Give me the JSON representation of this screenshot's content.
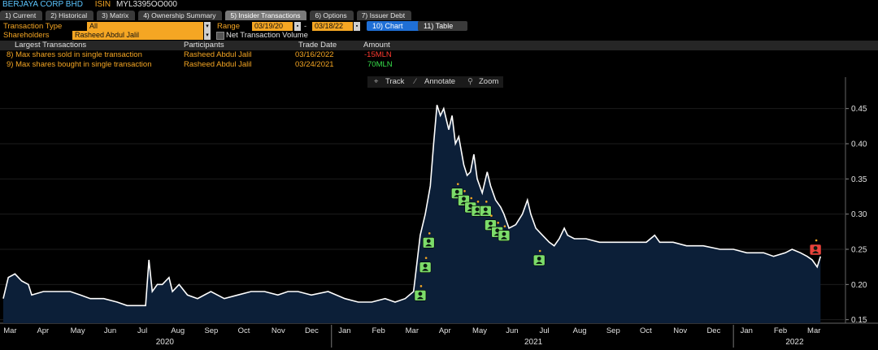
{
  "header": {
    "company": "BERJAYA CORP BHD",
    "isin_label": "ISIN",
    "isin_value": "MYL3395OO000"
  },
  "tabs": [
    "1) Current",
    "2) Historical",
    "3) Matrix",
    "4) Ownership Summary",
    "5) Insider Transactions",
    "6) Options",
    "7) Issuer Debt"
  ],
  "active_tab": 4,
  "form": {
    "transaction_type_label": "Transaction Type",
    "transaction_type_value": "All",
    "shareholders_label": "Shareholders",
    "shareholders_value": "Rasheed Abdul Jalil",
    "range_label": "Range",
    "range_start": "03/19/20",
    "range_sep": "-",
    "range_end": "03/18/22",
    "chart_button": "10) Chart",
    "table_button": "11) Table",
    "net_volume_label": "Net Transaction Volume"
  },
  "summary_table": {
    "headers": [
      "Largest Transactions",
      "Participants",
      "Trade Date",
      "Amount"
    ],
    "rows": [
      {
        "label": "8) Max shares sold in single transaction",
        "participant": "Rasheed Abdul Jalil",
        "date": "03/16/2022",
        "amount": "-15MLN"
      },
      {
        "label": "9) Max shares bought in single transaction",
        "participant": "Rasheed Abdul Jalil",
        "date": "03/24/2021",
        "amount": "70MLN"
      }
    ]
  },
  "toolbar": {
    "track": "Track",
    "annotate": "Annotate",
    "zoom": "Zoom"
  },
  "colors": {
    "accent": "#f5a623",
    "line": "#ffffff",
    "area": "#0c1f38",
    "buy": "#7cdc6a",
    "sell": "#e8423a",
    "negative": "#ff3b30",
    "positive": "#37e04a",
    "link": "#5cc6ff"
  },
  "chart_data": {
    "type": "area",
    "title": "",
    "ylim": [
      0.145,
      0.475
    ],
    "xlim": [
      0,
      25
    ],
    "yticks": [
      0.45,
      0.4,
      0.35,
      0.3,
      0.25,
      0.2,
      0.15
    ],
    "ytick_labels": [
      "0.45",
      "0.40",
      "0.35",
      "0.30",
      "0.25",
      "0.20",
      "0.15"
    ],
    "months": [
      {
        "label": "Mar",
        "x": 0.2
      },
      {
        "label": "Apr",
        "x": 1.2
      },
      {
        "label": "May",
        "x": 2.2
      },
      {
        "label": "Jun",
        "x": 3.2
      },
      {
        "label": "Jul",
        "x": 4.2
      },
      {
        "label": "Aug",
        "x": 5.2
      },
      {
        "label": "Sep",
        "x": 6.2
      },
      {
        "label": "Oct",
        "x": 7.2
      },
      {
        "label": "Nov",
        "x": 8.2
      },
      {
        "label": "Dec",
        "x": 9.2
      },
      {
        "label": "Jan",
        "x": 10.2
      },
      {
        "label": "Feb",
        "x": 11.2
      },
      {
        "label": "Mar",
        "x": 12.2
      },
      {
        "label": "Apr",
        "x": 13.2
      },
      {
        "label": "May",
        "x": 14.2
      },
      {
        "label": "Jun",
        "x": 15.2
      },
      {
        "label": "Jul",
        "x": 16.2
      },
      {
        "label": "Aug",
        "x": 17.2
      },
      {
        "label": "Sep",
        "x": 18.2
      },
      {
        "label": "Oct",
        "x": 19.2
      },
      {
        "label": "Nov",
        "x": 20.2
      },
      {
        "label": "Dec",
        "x": 21.2
      },
      {
        "label": "Jan",
        "x": 22.2
      },
      {
        "label": "Feb",
        "x": 23.2
      },
      {
        "label": "Mar",
        "x": 24.2
      }
    ],
    "years": [
      {
        "label": "2020",
        "x": 4.8
      },
      {
        "label": "2021",
        "x": 15.8
      },
      {
        "label": "2022",
        "x": 23.6
      }
    ],
    "year_dividers": [
      9.8,
      21.8
    ],
    "series": [
      {
        "name": "Price",
        "points": [
          [
            0.0,
            0.18
          ],
          [
            0.15,
            0.21
          ],
          [
            0.35,
            0.215
          ],
          [
            0.55,
            0.205
          ],
          [
            0.75,
            0.2
          ],
          [
            0.85,
            0.185
          ],
          [
            1.2,
            0.19
          ],
          [
            1.6,
            0.19
          ],
          [
            2.0,
            0.19
          ],
          [
            2.3,
            0.185
          ],
          [
            2.6,
            0.18
          ],
          [
            3.0,
            0.18
          ],
          [
            3.4,
            0.175
          ],
          [
            3.7,
            0.17
          ],
          [
            4.1,
            0.17
          ],
          [
            4.25,
            0.17
          ],
          [
            4.35,
            0.235
          ],
          [
            4.45,
            0.19
          ],
          [
            4.6,
            0.2
          ],
          [
            4.75,
            0.2
          ],
          [
            4.95,
            0.21
          ],
          [
            5.05,
            0.19
          ],
          [
            5.25,
            0.2
          ],
          [
            5.5,
            0.185
          ],
          [
            5.8,
            0.18
          ],
          [
            6.2,
            0.19
          ],
          [
            6.6,
            0.18
          ],
          [
            7.0,
            0.185
          ],
          [
            7.4,
            0.19
          ],
          [
            7.8,
            0.19
          ],
          [
            8.2,
            0.185
          ],
          [
            8.5,
            0.19
          ],
          [
            8.8,
            0.19
          ],
          [
            9.2,
            0.185
          ],
          [
            9.7,
            0.19
          ],
          [
            10.2,
            0.18
          ],
          [
            10.6,
            0.175
          ],
          [
            11.0,
            0.175
          ],
          [
            11.4,
            0.18
          ],
          [
            11.7,
            0.175
          ],
          [
            12.0,
            0.18
          ],
          [
            12.25,
            0.19
          ],
          [
            12.45,
            0.27
          ],
          [
            12.6,
            0.3
          ],
          [
            12.75,
            0.34
          ],
          [
            12.85,
            0.4
          ],
          [
            12.95,
            0.455
          ],
          [
            13.05,
            0.44
          ],
          [
            13.15,
            0.45
          ],
          [
            13.3,
            0.42
          ],
          [
            13.4,
            0.44
          ],
          [
            13.5,
            0.4
          ],
          [
            13.6,
            0.41
          ],
          [
            13.75,
            0.37
          ],
          [
            13.85,
            0.355
          ],
          [
            13.95,
            0.36
          ],
          [
            14.05,
            0.385
          ],
          [
            14.15,
            0.35
          ],
          [
            14.3,
            0.33
          ],
          [
            14.45,
            0.36
          ],
          [
            14.55,
            0.34
          ],
          [
            14.7,
            0.32
          ],
          [
            14.85,
            0.31
          ],
          [
            14.95,
            0.3
          ],
          [
            15.1,
            0.28
          ],
          [
            15.3,
            0.285
          ],
          [
            15.5,
            0.3
          ],
          [
            15.65,
            0.32
          ],
          [
            15.75,
            0.3
          ],
          [
            15.9,
            0.28
          ],
          [
            16.1,
            0.27
          ],
          [
            16.3,
            0.26
          ],
          [
            16.45,
            0.255
          ],
          [
            16.6,
            0.265
          ],
          [
            16.75,
            0.28
          ],
          [
            16.85,
            0.27
          ],
          [
            17.05,
            0.265
          ],
          [
            17.4,
            0.265
          ],
          [
            17.8,
            0.26
          ],
          [
            18.4,
            0.26
          ],
          [
            18.8,
            0.26
          ],
          [
            19.2,
            0.26
          ],
          [
            19.45,
            0.27
          ],
          [
            19.6,
            0.26
          ],
          [
            20.0,
            0.26
          ],
          [
            20.4,
            0.255
          ],
          [
            20.9,
            0.255
          ],
          [
            21.4,
            0.25
          ],
          [
            21.8,
            0.25
          ],
          [
            22.2,
            0.245
          ],
          [
            22.7,
            0.245
          ],
          [
            23.0,
            0.24
          ],
          [
            23.35,
            0.245
          ],
          [
            23.55,
            0.25
          ],
          [
            23.8,
            0.245
          ],
          [
            24.0,
            0.24
          ],
          [
            24.15,
            0.235
          ],
          [
            24.3,
            0.225
          ],
          [
            24.4,
            0.24
          ]
        ]
      }
    ],
    "markers": [
      {
        "x": 12.45,
        "y": 0.185,
        "kind": "buy"
      },
      {
        "x": 12.6,
        "y": 0.225,
        "kind": "buy"
      },
      {
        "x": 12.7,
        "y": 0.26,
        "kind": "buy"
      },
      {
        "x": 13.55,
        "y": 0.33,
        "kind": "buy"
      },
      {
        "x": 13.75,
        "y": 0.32,
        "kind": "buy"
      },
      {
        "x": 13.95,
        "y": 0.31,
        "kind": "buy"
      },
      {
        "x": 14.15,
        "y": 0.305,
        "kind": "buy"
      },
      {
        "x": 14.4,
        "y": 0.305,
        "kind": "buy"
      },
      {
        "x": 14.55,
        "y": 0.285,
        "kind": "buy"
      },
      {
        "x": 14.75,
        "y": 0.275,
        "kind": "buy"
      },
      {
        "x": 14.95,
        "y": 0.27,
        "kind": "buy"
      },
      {
        "x": 16.0,
        "y": 0.235,
        "kind": "buy"
      },
      {
        "x": 24.25,
        "y": 0.25,
        "kind": "sell"
      }
    ]
  }
}
